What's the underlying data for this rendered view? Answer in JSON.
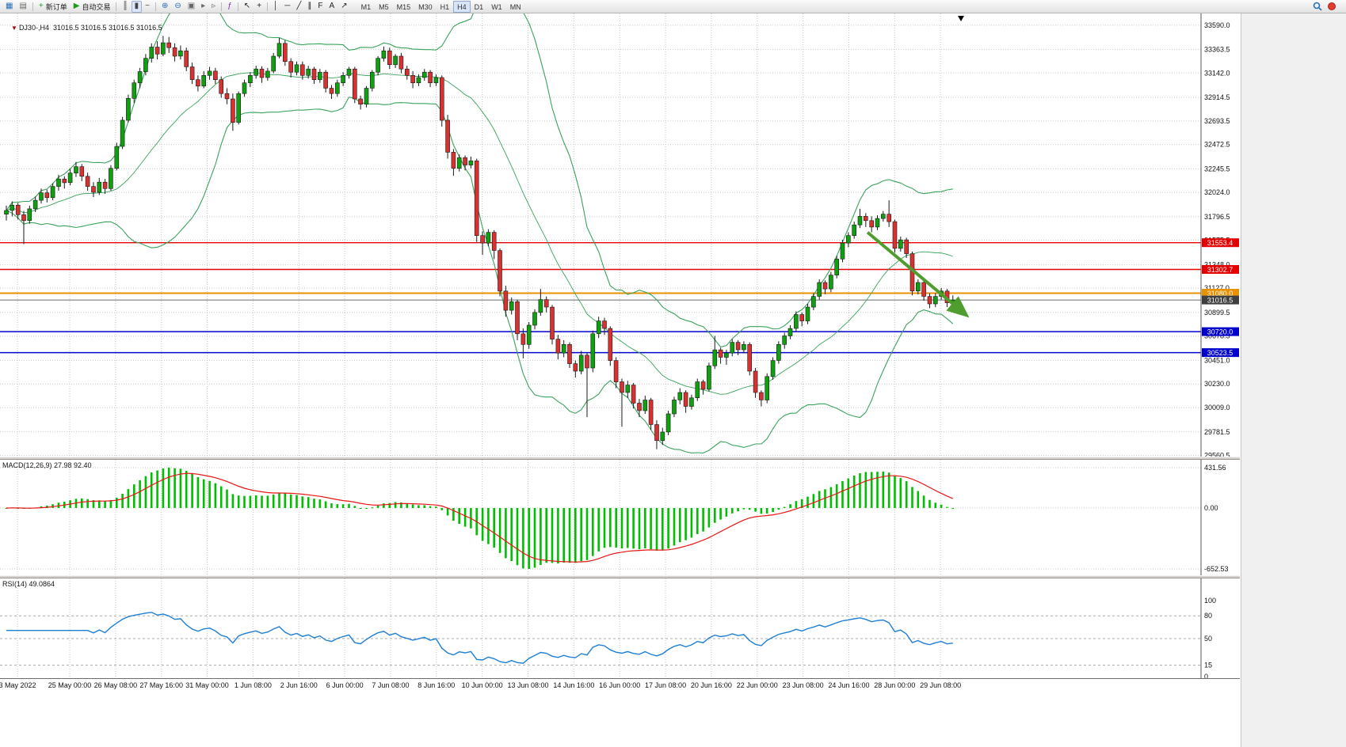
{
  "toolbar": {
    "items": [
      {
        "name": "new-chart",
        "glyph": "▦",
        "color": "#2a6db5"
      },
      {
        "name": "chart-profiles",
        "glyph": "▤",
        "color": "#666666"
      },
      {
        "sep": true
      },
      {
        "name": "new-order",
        "glyph": "+",
        "color": "#1a9e1a",
        "label": "新订单"
      },
      {
        "name": "expert-advisors",
        "glyph": "▶",
        "color": "#1a9e1a",
        "label": "自动交易"
      },
      {
        "sep": true
      },
      {
        "name": "bar-chart",
        "glyph": "║",
        "color": "#444444"
      },
      {
        "name": "candlestick-chart",
        "glyph": "▮",
        "color": "#444444",
        "active": true
      },
      {
        "name": "line-chart",
        "glyph": "~",
        "color": "#444444"
      },
      {
        "sep": true
      },
      {
        "name": "zoom-in",
        "glyph": "⊕",
        "color": "#2a6db5"
      },
      {
        "name": "zoom-out",
        "glyph": "⊖",
        "color": "#2a6db5"
      },
      {
        "name": "tile-windows",
        "glyph": "▣",
        "color": "#666666"
      },
      {
        "name": "auto-scroll",
        "glyph": "▸",
        "color": "#666666"
      },
      {
        "name": "chart-shift",
        "glyph": "▹",
        "color": "#666666"
      },
      {
        "sep": true
      },
      {
        "name": "indicators",
        "glyph": "ƒ",
        "color": "#7a2bb5"
      },
      {
        "sep": true
      },
      {
        "name": "cursor",
        "glyph": "↖",
        "color": "#222222"
      },
      {
        "name": "crosshair",
        "glyph": "+",
        "color": "#222222"
      },
      {
        "sep": true
      },
      {
        "name": "vertical-line",
        "glyph": "│",
        "color": "#222222"
      },
      {
        "name": "horizontal-line",
        "glyph": "─",
        "color": "#222222"
      },
      {
        "name": "trendline",
        "glyph": "╱",
        "color": "#222222"
      },
      {
        "name": "equidistant-channel",
        "glyph": "∥",
        "color": "#222222"
      },
      {
        "name": "fibonacci",
        "glyph": "F",
        "color": "#222222"
      },
      {
        "name": "text-label",
        "glyph": "A",
        "color": "#222222"
      },
      {
        "name": "arrows",
        "glyph": "↗",
        "color": "#222222"
      }
    ],
    "timeframes": [
      "M1",
      "M5",
      "M15",
      "M30",
      "H1",
      "H4",
      "D1",
      "W1",
      "MN"
    ],
    "active_timeframe": "H4"
  },
  "chart": {
    "symbol_marker": "▼",
    "symbol_period": "DJ30-,H4",
    "ohlc_text": "31016.5 31016.5 31016.5 31016.5",
    "price_axis_labels": [
      "33590.0",
      "33363.5",
      "33142.0",
      "32914.5",
      "32693.5",
      "32472.5",
      "32245.5",
      "32024.0",
      "31796.5",
      "31575.5",
      "31348.0",
      "31127.0",
      "30899.5",
      "30678.5",
      "30451.0",
      "30230.0",
      "30009.0",
      "29781.5",
      "29560.5"
    ],
    "price_badges": [
      {
        "value": "31553.4",
        "bg": "#e50000"
      },
      {
        "value": "31302.7",
        "bg": "#e50000"
      },
      {
        "value": "31080.0",
        "bg": "#e89200"
      },
      {
        "value": "31016.5",
        "bg": "#3f3f3f"
      },
      {
        "value": "30720.0",
        "bg": "#0000cd"
      },
      {
        "value": "30523.5",
        "bg": "#0000cd"
      }
    ],
    "hlines": [
      {
        "price": 31553.4,
        "color": "#e50000",
        "width": 1.4
      },
      {
        "price": 31302.7,
        "color": "#e50000",
        "width": 1.4
      },
      {
        "price": 31080.0,
        "color": "#e89200",
        "width": 2
      },
      {
        "price": 31016.5,
        "color": "#6b6b6b",
        "width": 1
      },
      {
        "price": 30720.0,
        "color": "#0000cd",
        "width": 1.6
      },
      {
        "price": 30523.5,
        "color": "#0000cd",
        "width": 1.6
      }
    ]
  },
  "indicators": {
    "macd": {
      "label": "MACD(12,26,9) 27.98 92.40",
      "axis_labels": [
        "431.56",
        "0.00",
        "-652.53"
      ]
    },
    "rsi": {
      "label": "RSI(14) 49.0864",
      "axis_labels": [
        "100",
        "80",
        "50",
        "15",
        "0"
      ],
      "levels": [
        80,
        50,
        15
      ]
    }
  },
  "time_axis": [
    "3 May 2022",
    "25 May 00:00",
    "26 May 08:00",
    "27 May 16:00",
    "31 May 00:00",
    "1 Jun 08:00",
    "2 Jun 16:00",
    "6 Jun 00:00",
    "7 Jun 08:00",
    "8 Jun 16:00",
    "10 Jun 00:00",
    "13 Jun 08:00",
    "14 Jun 16:00",
    "16 Jun 00:00",
    "17 Jun 08:00",
    "20 Jun 16:00",
    "22 Jun 00:00",
    "23 Jun 08:00",
    "24 Jun 16:00",
    "28 Jun 00:00",
    "29 Jun 08:00"
  ],
  "colors": {
    "up": "#0fa00f",
    "down": "#d93030",
    "outline": "#1a1a1a",
    "bands": "#3aa35c",
    "grid": "#c8c8c8",
    "macd_hist": "#00be00",
    "macd_signal": "#e81515",
    "rsi": "#1f7fd4"
  },
  "chart_data": {
    "type": "candlestick",
    "symbol": "DJ30-",
    "period": "H4",
    "ylim": [
      29550,
      33700
    ],
    "overlays": [
      "Bollinger Bands"
    ],
    "annotations": [
      {
        "type": "arrow",
        "from_bar": 148.3,
        "from_price": 31650,
        "to_bar": 165.2,
        "to_price": 30880,
        "color": "#4f9d2f"
      }
    ],
    "ohlc": [
      [
        31820,
        31900,
        31760,
        31855
      ],
      [
        31855,
        31940,
        31800,
        31905
      ],
      [
        31905,
        31925,
        31770,
        31815
      ],
      [
        31815,
        31850,
        31540,
        31760
      ],
      [
        31760,
        31900,
        31730,
        31870
      ],
      [
        31870,
        31985,
        31840,
        31950
      ],
      [
        31950,
        32060,
        31920,
        32020
      ],
      [
        32020,
        32050,
        31930,
        31975
      ],
      [
        31975,
        32110,
        31950,
        32080
      ],
      [
        32080,
        32190,
        32040,
        32150
      ],
      [
        32150,
        32175,
        32060,
        32115
      ],
      [
        32115,
        32245,
        32090,
        32205
      ],
      [
        32205,
        32310,
        32170,
        32265
      ],
      [
        32265,
        32290,
        32130,
        32175
      ],
      [
        32175,
        32210,
        32040,
        32080
      ],
      [
        32080,
        32120,
        31980,
        32025
      ],
      [
        32025,
        32160,
        32000,
        32120
      ],
      [
        32120,
        32150,
        32010,
        32060
      ],
      [
        32060,
        32280,
        32040,
        32250
      ],
      [
        32250,
        32490,
        32230,
        32455
      ],
      [
        32455,
        32730,
        32430,
        32700
      ],
      [
        32700,
        32940,
        32680,
        32905
      ],
      [
        32905,
        33080,
        32860,
        33050
      ],
      [
        33050,
        33190,
        33000,
        33155
      ],
      [
        33155,
        33320,
        33120,
        33280
      ],
      [
        33280,
        33420,
        33240,
        33385
      ],
      [
        33385,
        33440,
        33270,
        33320
      ],
      [
        33320,
        33490,
        33300,
        33425
      ],
      [
        33425,
        33480,
        33330,
        33380
      ],
      [
        33380,
        33420,
        33250,
        33300
      ],
      [
        33300,
        33400,
        33270,
        33350
      ],
      [
        33350,
        33380,
        33160,
        33200
      ],
      [
        33200,
        33240,
        33040,
        33080
      ],
      [
        33080,
        33120,
        32970,
        33020
      ],
      [
        33020,
        33160,
        33000,
        33120
      ],
      [
        33120,
        33200,
        33080,
        33160
      ],
      [
        33160,
        33190,
        33040,
        33080
      ],
      [
        33080,
        33110,
        32910,
        32950
      ],
      [
        32950,
        33000,
        32850,
        32900
      ],
      [
        32900,
        32950,
        32600,
        32680
      ],
      [
        32680,
        32970,
        32660,
        32950
      ],
      [
        32950,
        33080,
        32920,
        33050
      ],
      [
        33050,
        33150,
        33010,
        33120
      ],
      [
        33120,
        33210,
        33090,
        33180
      ],
      [
        33180,
        33205,
        33050,
        33100
      ],
      [
        33100,
        33190,
        33070,
        33160
      ],
      [
        33160,
        33330,
        33140,
        33300
      ],
      [
        33300,
        33470,
        33280,
        33420
      ],
      [
        33420,
        33450,
        33210,
        33250
      ],
      [
        33250,
        33280,
        33100,
        33150
      ],
      [
        33150,
        33250,
        33120,
        33220
      ],
      [
        33220,
        33250,
        33080,
        33120
      ],
      [
        33120,
        33210,
        33090,
        33180
      ],
      [
        33180,
        33200,
        33040,
        33080
      ],
      [
        33080,
        33180,
        33050,
        33150
      ],
      [
        33150,
        33170,
        32960,
        33000
      ],
      [
        33000,
        33030,
        32900,
        32950
      ],
      [
        32950,
        33080,
        32920,
        33050
      ],
      [
        33050,
        33150,
        33020,
        33120
      ],
      [
        33120,
        33200,
        33090,
        33180
      ],
      [
        33180,
        33200,
        32860,
        32900
      ],
      [
        32900,
        32930,
        32800,
        32850
      ],
      [
        32850,
        33020,
        32820,
        33000
      ],
      [
        33000,
        33170,
        32970,
        33150
      ],
      [
        33150,
        33300,
        33120,
        33280
      ],
      [
        33280,
        33390,
        33250,
        33350
      ],
      [
        33350,
        33380,
        33180,
        33220
      ],
      [
        33220,
        33320,
        33190,
        33300
      ],
      [
        33300,
        33330,
        33140,
        33180
      ],
      [
        33180,
        33210,
        33080,
        33120
      ],
      [
        33120,
        33160,
        33000,
        33050
      ],
      [
        33050,
        33130,
        33020,
        33100
      ],
      [
        33100,
        33180,
        33070,
        33150
      ],
      [
        33150,
        33170,
        33010,
        33050
      ],
      [
        33050,
        33130,
        33020,
        33100
      ],
      [
        33100,
        33120,
        32640,
        32700
      ],
      [
        32700,
        32750,
        32340,
        32400
      ],
      [
        32400,
        32430,
        32180,
        32250
      ],
      [
        32250,
        32380,
        32220,
        32350
      ],
      [
        32350,
        32370,
        32230,
        32280
      ],
      [
        32280,
        32360,
        32250,
        32320
      ],
      [
        32320,
        32340,
        31560,
        31620
      ],
      [
        31620,
        31660,
        31440,
        31550
      ],
      [
        31550,
        31680,
        31520,
        31650
      ],
      [
        31650,
        31670,
        31400,
        31480
      ],
      [
        31480,
        31500,
        31050,
        31100
      ],
      [
        31100,
        31150,
        30860,
        30920
      ],
      [
        30920,
        31040,
        30880,
        31000
      ],
      [
        31000,
        31020,
        30640,
        30700
      ],
      [
        30700,
        30750,
        30470,
        30600
      ],
      [
        30600,
        30810,
        30560,
        30780
      ],
      [
        30780,
        30930,
        30740,
        30900
      ],
      [
        30900,
        31120,
        30870,
        31020
      ],
      [
        31020,
        31050,
        30900,
        30950
      ],
      [
        30950,
        30970,
        30600,
        30650
      ],
      [
        30650,
        30690,
        30460,
        30520
      ],
      [
        30520,
        30640,
        30480,
        30600
      ],
      [
        30600,
        30620,
        30380,
        30420
      ],
      [
        30420,
        30450,
        30290,
        30350
      ],
      [
        30350,
        30540,
        30320,
        30500
      ],
      [
        30500,
        30520,
        29920,
        30380
      ],
      [
        30380,
        30730,
        30340,
        30700
      ],
      [
        30700,
        30860,
        30660,
        30820
      ],
      [
        30820,
        30850,
        30690,
        30750
      ],
      [
        30750,
        30770,
        30400,
        30450
      ],
      [
        30450,
        30480,
        30190,
        30250
      ],
      [
        30250,
        30280,
        29830,
        30150
      ],
      [
        30150,
        30260,
        30100,
        30220
      ],
      [
        30220,
        30240,
        30000,
        30050
      ],
      [
        30050,
        30090,
        29920,
        29980
      ],
      [
        29980,
        30120,
        29950,
        30080
      ],
      [
        30080,
        30100,
        29800,
        29850
      ],
      [
        29850,
        29890,
        29620,
        29700
      ],
      [
        29700,
        29820,
        29660,
        29780
      ],
      [
        29780,
        29980,
        29750,
        29950
      ],
      [
        29950,
        30110,
        29920,
        30080
      ],
      [
        30080,
        30190,
        30040,
        30150
      ],
      [
        30150,
        30170,
        29960,
        30020
      ],
      [
        30020,
        30130,
        29990,
        30100
      ],
      [
        30100,
        30280,
        30070,
        30250
      ],
      [
        30250,
        30270,
        30130,
        30180
      ],
      [
        30180,
        30430,
        30160,
        30400
      ],
      [
        30400,
        30680,
        30370,
        30550
      ],
      [
        30550,
        30570,
        30420,
        30480
      ],
      [
        30480,
        30550,
        30410,
        30520
      ],
      [
        30520,
        30650,
        30490,
        30620
      ],
      [
        30620,
        30640,
        30500,
        30550
      ],
      [
        30550,
        30630,
        30520,
        30600
      ],
      [
        30600,
        30620,
        30310,
        30350
      ],
      [
        30350,
        30380,
        30100,
        30150
      ],
      [
        30150,
        30170,
        30020,
        30080
      ],
      [
        30080,
        30330,
        30050,
        30300
      ],
      [
        30300,
        30480,
        30270,
        30450
      ],
      [
        30450,
        30630,
        30420,
        30600
      ],
      [
        30600,
        30710,
        30560,
        30680
      ],
      [
        30680,
        30780,
        30650,
        30750
      ],
      [
        30750,
        30910,
        30720,
        30880
      ],
      [
        30880,
        30900,
        30770,
        30820
      ],
      [
        30820,
        30980,
        30790,
        30950
      ],
      [
        30950,
        31080,
        30920,
        31050
      ],
      [
        31050,
        31210,
        31020,
        31180
      ],
      [
        31180,
        31200,
        31070,
        31120
      ],
      [
        31120,
        31280,
        31090,
        31250
      ],
      [
        31250,
        31430,
        31220,
        31400
      ],
      [
        31400,
        31580,
        31370,
        31550
      ],
      [
        31550,
        31650,
        31510,
        31620
      ],
      [
        31620,
        31750,
        31590,
        31720
      ],
      [
        31720,
        31870,
        31690,
        31800
      ],
      [
        31800,
        31830,
        31700,
        31760
      ],
      [
        31760,
        31800,
        31650,
        31700
      ],
      [
        31700,
        31810,
        31670,
        31780
      ],
      [
        31780,
        31850,
        31750,
        31820
      ],
      [
        31820,
        31950,
        31700,
        31750
      ],
      [
        31750,
        31770,
        31460,
        31500
      ],
      [
        31500,
        31610,
        31470,
        31580
      ],
      [
        31580,
        31600,
        31410,
        31450
      ],
      [
        31450,
        31470,
        31060,
        31100
      ],
      [
        31100,
        31210,
        31070,
        31180
      ],
      [
        31180,
        31200,
        31010,
        31050
      ],
      [
        31050,
        31080,
        30940,
        30980
      ],
      [
        30980,
        31080,
        30950,
        31050
      ],
      [
        31050,
        31130,
        31020,
        31100
      ],
      [
        31100,
        31120,
        30950,
        30990
      ],
      [
        30990,
        31060,
        30940,
        31016.5
      ]
    ]
  }
}
